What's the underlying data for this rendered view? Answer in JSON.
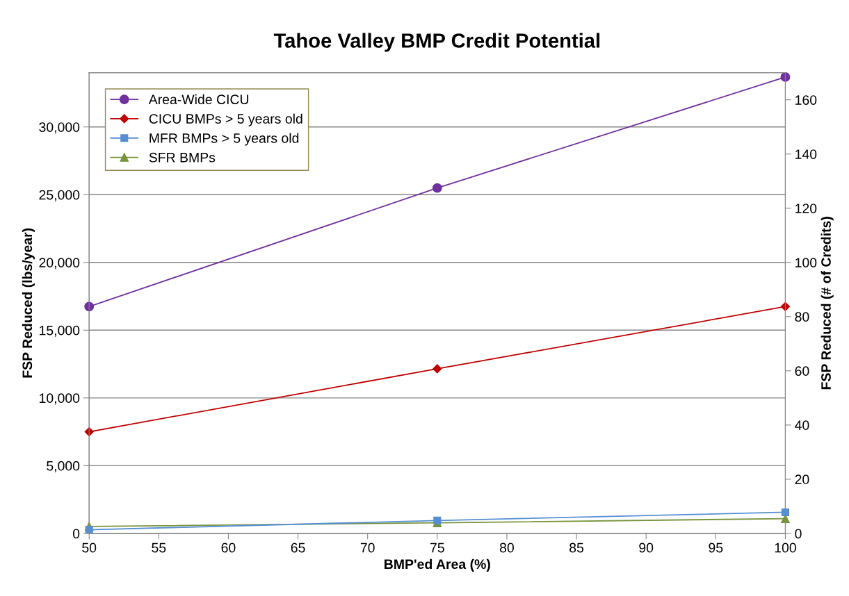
{
  "chart_data": {
    "type": "line",
    "title": "Tahoe Valley BMP Credit Potential",
    "xlabel": "BMP'ed Area (%)",
    "ylabel": "FSP Reduced (lbs/year)",
    "y2label": "FSP Reduced (# of Credits)",
    "x": [
      50,
      75,
      100
    ],
    "series": [
      {
        "name": "Area-Wide CICU",
        "color": "#7030a0",
        "marker": "circle",
        "values": [
          16740,
          25490,
          33680
        ]
      },
      {
        "name": "CICU BMPs > 5 years old",
        "color": "#c00000",
        "marker": "diamond",
        "values": [
          7500,
          12150,
          16740
        ]
      },
      {
        "name": "MFR BMPs > 5 years old",
        "color": "#558ed5",
        "marker": "square",
        "values": [
          270,
          950,
          1560
        ]
      },
      {
        "name": "SFR BMPs",
        "color": "#77933c",
        "marker": "triangle",
        "values": [
          510,
          780,
          1090
        ]
      }
    ],
    "xlim": [
      50,
      100
    ],
    "xticks": [
      50,
      55,
      60,
      65,
      70,
      75,
      80,
      85,
      90,
      95,
      100
    ],
    "ylim": [
      0,
      34000
    ],
    "yticks": [
      {
        "value": 0,
        "label": "0"
      },
      {
        "value": 5000,
        "label": "5,000"
      },
      {
        "value": 10000,
        "label": "10,000"
      },
      {
        "value": 15000,
        "label": "15,000"
      },
      {
        "value": 20000,
        "label": "20,000"
      },
      {
        "value": 25000,
        "label": "25,000"
      },
      {
        "value": 30000,
        "label": "30,000"
      }
    ],
    "y2lim": [
      0,
      170
    ],
    "y2ticks": [
      0,
      20,
      40,
      60,
      80,
      100,
      120,
      140,
      160
    ],
    "grid": "y",
    "legend": "top left",
    "line_style": "solid"
  }
}
